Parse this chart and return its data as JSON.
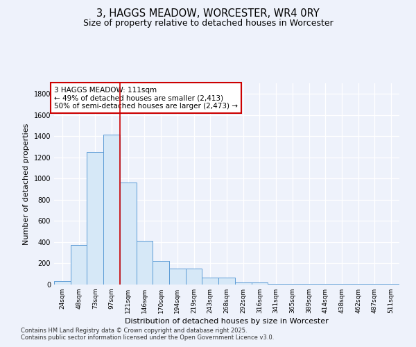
{
  "title_line1": "3, HAGGS MEADOW, WORCESTER, WR4 0RY",
  "title_line2": "Size of property relative to detached houses in Worcester",
  "xlabel": "Distribution of detached houses by size in Worcester",
  "ylabel": "Number of detached properties",
  "categories": [
    "24sqm",
    "48sqm",
    "73sqm",
    "97sqm",
    "121sqm",
    "146sqm",
    "170sqm",
    "194sqm",
    "219sqm",
    "243sqm",
    "268sqm",
    "292sqm",
    "316sqm",
    "341sqm",
    "365sqm",
    "389sqm",
    "414sqm",
    "438sqm",
    "462sqm",
    "487sqm",
    "511sqm"
  ],
  "values": [
    30,
    375,
    1250,
    1415,
    960,
    415,
    220,
    150,
    150,
    65,
    65,
    20,
    20,
    5,
    5,
    5,
    5,
    5,
    5,
    5,
    5
  ],
  "bar_color": "#d6e8f7",
  "bar_edge_color": "#5b9bd5",
  "vline_x": 3.5,
  "vline_color": "#cc0000",
  "annotation_text": "3 HAGGS MEADOW: 111sqm\n← 49% of detached houses are smaller (2,413)\n50% of semi-detached houses are larger (2,473) →",
  "annotation_box_color": "#ffffff",
  "annotation_box_edge": "#cc0000",
  "ylim": [
    0,
    1900
  ],
  "yticks": [
    0,
    200,
    400,
    600,
    800,
    1000,
    1200,
    1400,
    1600,
    1800
  ],
  "background_color": "#eef2fb",
  "grid_color": "#ffffff",
  "footer_line1": "Contains HM Land Registry data © Crown copyright and database right 2025.",
  "footer_line2": "Contains public sector information licensed under the Open Government Licence v3.0."
}
